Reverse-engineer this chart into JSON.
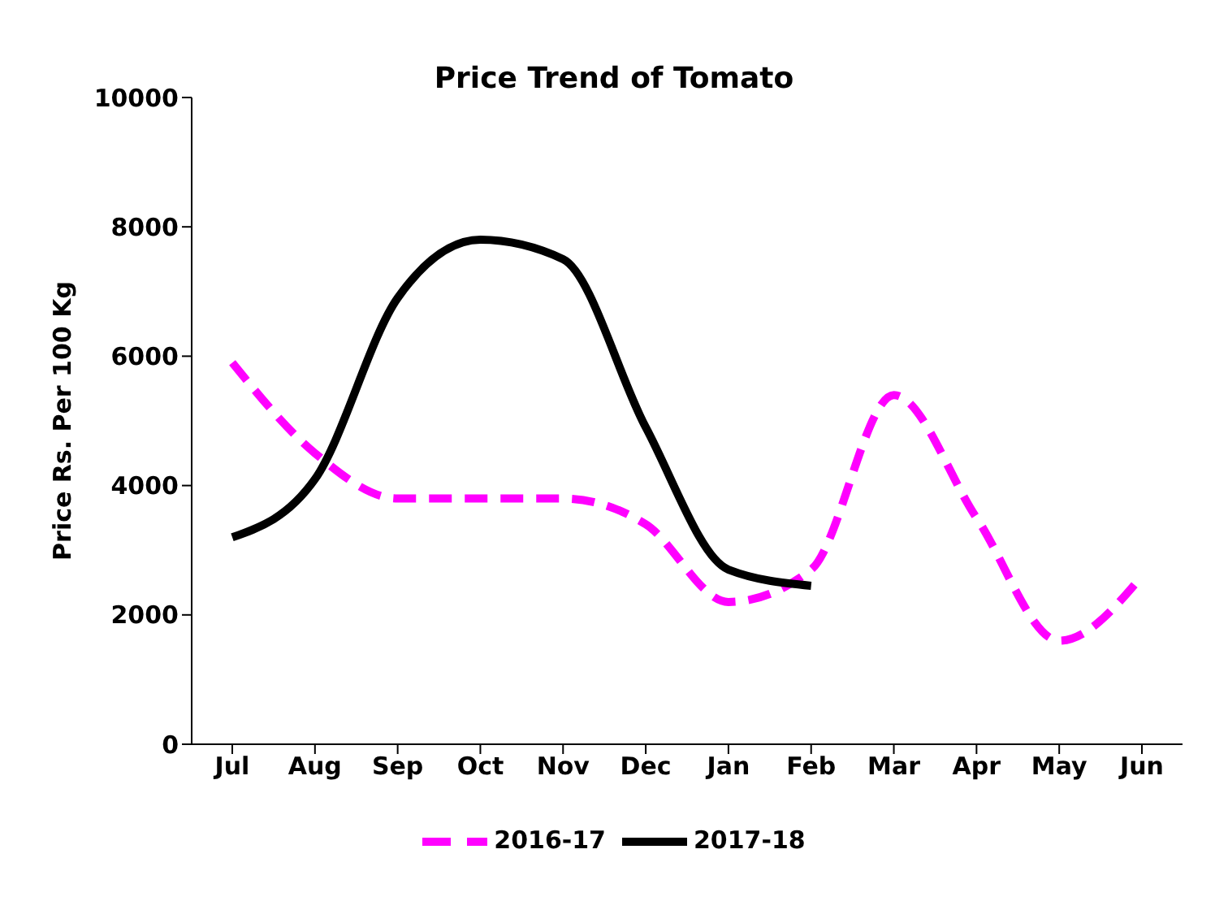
{
  "chart_data": {
    "type": "line",
    "title": "Price Trend of Tomato",
    "ylabel": "Price Rs. Per 100 Kg",
    "categories": [
      "Jul",
      "Aug",
      "Sep",
      "Oct",
      "Nov",
      "Dec",
      "Jan",
      "Feb",
      "Mar",
      "Apr",
      "May",
      "Jun"
    ],
    "series": [
      {
        "name": "2016-17",
        "color": "#ff00ff",
        "line_style": "dashed",
        "values": [
          5900,
          4500,
          3800,
          3800,
          3800,
          3400,
          2200,
          2700,
          5400,
          3500,
          1600,
          2600
        ]
      },
      {
        "name": "2017-18",
        "color": "#000000",
        "line_style": "solid",
        "values": [
          3200,
          4100,
          6900,
          7800,
          7500,
          4900,
          2700,
          2450,
          null,
          null,
          null,
          null
        ]
      }
    ],
    "ylim": [
      0,
      10000
    ],
    "yticks": [
      0,
      2000,
      4000,
      6000,
      8000,
      10000
    ],
    "grid": false,
    "legend": "bottom",
    "marker": "none"
  }
}
